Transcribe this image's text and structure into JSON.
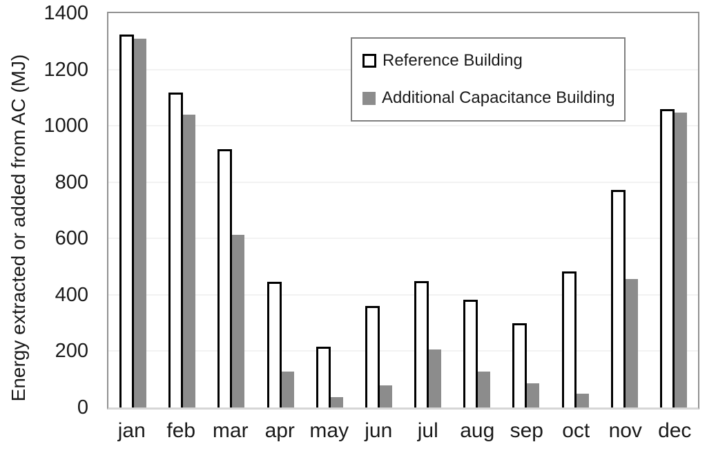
{
  "chart_data": {
    "type": "bar",
    "title": "",
    "xlabel": "",
    "ylabel": "Energy extracted or added from AC (MJ)",
    "ylim": [
      0,
      1400
    ],
    "yticks": [
      0,
      200,
      400,
      600,
      800,
      1000,
      1200,
      1400
    ],
    "grid": "horizontal",
    "legend_position": "top-center-inside",
    "categories": [
      "jan",
      "feb",
      "mar",
      "apr",
      "may",
      "jun",
      "jul",
      "aug",
      "sep",
      "oct",
      "nov",
      "dec"
    ],
    "series": [
      {
        "name": "Reference Building",
        "fill": "#ffffff",
        "border": "#000000",
        "values": [
          1325,
          1118,
          916,
          447,
          215,
          361,
          448,
          383,
          299,
          483,
          772,
          1060
        ]
      },
      {
        "name": "Additional Capacitance Building",
        "fill": "#8c8c8c",
        "border": "none",
        "values": [
          1310,
          1040,
          612,
          128,
          38,
          79,
          207,
          128,
          86,
          50,
          456,
          1047
        ]
      }
    ],
    "colors": {
      "gridline": "#f2f2f2",
      "plot_border": "#909090",
      "axis_line": "#d6d6d6",
      "text": "#1a1a1a",
      "gray_series": "#8c8c8c"
    }
  }
}
